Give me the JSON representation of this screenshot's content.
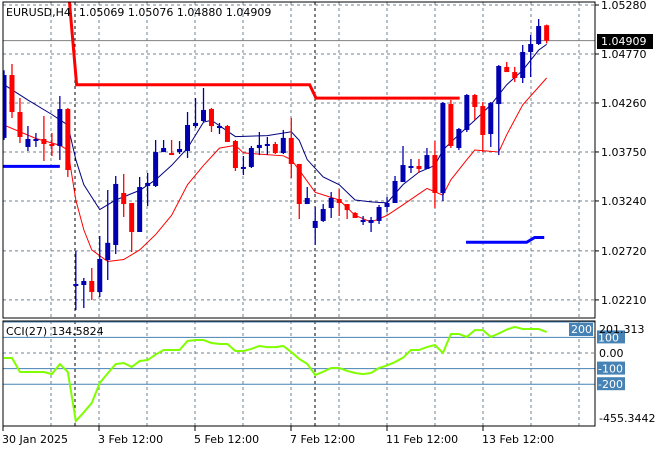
{
  "header": {
    "symbol": "EURUSD,H4",
    "ohlc": "1.05069 1.05076 1.04880 1.04909"
  },
  "colors": {
    "bull": "#0000b0",
    "bear": "#ff0000",
    "ma_fast": "#000080",
    "ma_slow": "#ff0000",
    "cci": "#80ff00",
    "level_line": "#4682b4",
    "grid": "#708090"
  },
  "chart_data": [
    {
      "type": "candlestick",
      "title": "EURUSD,H4",
      "ylim": [
        1.0205,
        1.0533
      ],
      "y_ticks": [
        "1.05280",
        "1.04770",
        "1.04260",
        "1.03750",
        "1.03240",
        "1.02720",
        "1.02210"
      ],
      "current_price_label": "1.04909",
      "x_tick_labels": [
        "30 Jan 2025",
        "3 Feb 12:00",
        "5 Feb 12:00",
        "7 Feb 12:00",
        "11 Feb 12:00",
        "13 Feb 12:00"
      ],
      "candles_ohlc": [
        [
          1.03896,
          1.046,
          1.03875,
          1.04551
        ],
        [
          1.04551,
          1.04666,
          1.04104,
          1.04166
        ],
        [
          1.04166,
          1.04312,
          1.03843,
          1.03906
        ],
        [
          1.03802,
          1.0402,
          1.0376,
          1.03885
        ],
        [
          1.03875,
          1.03947,
          1.03802,
          1.03885
        ],
        [
          1.03885,
          1.04124,
          1.03656,
          1.03833
        ],
        [
          1.03833,
          1.03947,
          1.03708,
          1.03812
        ],
        [
          1.03812,
          1.04333,
          1.03666,
          1.04197
        ],
        [
          1.04197,
          1.04208,
          1.0349,
          1.03562
        ],
        [
          1.02365,
          1.02719,
          1.02105,
          1.02376
        ],
        [
          1.02365,
          1.02438,
          1.02125,
          1.02407
        ],
        [
          1.02407,
          1.02542,
          1.02209,
          1.02292
        ],
        [
          1.02292,
          1.02875,
          1.0224,
          1.02636
        ],
        [
          1.02625,
          1.03354,
          1.02417,
          1.02804
        ],
        [
          1.02782,
          1.035,
          1.02688,
          1.03417
        ],
        [
          1.03323,
          1.03521,
          1.03073,
          1.03208
        ],
        [
          1.03219,
          1.03219,
          1.02709,
          1.02917
        ],
        [
          1.02917,
          1.0349,
          1.02917,
          1.03385
        ],
        [
          1.03396,
          1.03531,
          1.03188,
          1.03427
        ],
        [
          1.03396,
          1.03875,
          1.03385,
          1.03749
        ],
        [
          1.03749,
          1.03875,
          1.03749,
          1.03791
        ],
        [
          1.03739,
          1.03875,
          1.03718,
          1.03729
        ],
        [
          1.03749,
          1.03864,
          1.03729,
          1.03781
        ],
        [
          1.0376,
          1.04166,
          1.03687,
          1.04031
        ],
        [
          1.0402,
          1.04312,
          1.04,
          1.04052
        ],
        [
          1.04072,
          1.04416,
          1.04062,
          1.04187
        ],
        [
          1.04197,
          1.04208,
          1.03958,
          1.0402
        ],
        [
          1.04,
          1.04052,
          1.03937,
          1.0402
        ],
        [
          1.0402,
          1.04031,
          1.03854,
          1.03854
        ],
        [
          1.03864,
          1.03875,
          1.03552,
          1.03583
        ],
        [
          1.03583,
          1.03708,
          1.0351,
          1.03594
        ],
        [
          1.03594,
          1.03812,
          1.03583,
          1.03791
        ],
        [
          1.03791,
          1.03958,
          1.03718,
          1.03823
        ],
        [
          1.03823,
          1.03906,
          1.03718,
          1.03833
        ],
        [
          1.03833,
          1.03854,
          1.03729,
          1.03739
        ],
        [
          1.03739,
          1.03979,
          1.03729,
          1.03896
        ],
        [
          1.03896,
          1.04104,
          1.03479,
          1.03625
        ],
        [
          1.03625,
          1.03625,
          1.03052,
          1.03208
        ],
        [
          1.03208,
          1.03385,
          1.03208,
          1.03271
        ],
        [
          1.02959,
          1.03177,
          1.02782,
          1.03032
        ],
        [
          1.03032,
          1.03208,
          1.03021,
          1.03156
        ],
        [
          1.03167,
          1.03333,
          1.03063,
          1.03271
        ],
        [
          1.0326,
          1.03365,
          1.03083,
          1.03219
        ],
        [
          1.03208,
          1.03208,
          1.03052,
          1.03146
        ],
        [
          1.03115,
          1.03125,
          1.03063,
          1.03063
        ],
        [
          1.03032,
          1.03083,
          1.0299,
          1.03042
        ],
        [
          1.03011,
          1.03073,
          1.02917,
          1.03042
        ],
        [
          1.03032,
          1.03198,
          1.03,
          1.03177
        ],
        [
          1.03177,
          1.03281,
          1.03125,
          1.03219
        ],
        [
          1.03219,
          1.035,
          1.03219,
          1.03448
        ],
        [
          1.03437,
          1.03812,
          1.03437,
          1.03614
        ],
        [
          1.03583,
          1.03677,
          1.03531,
          1.03604
        ],
        [
          1.03604,
          1.03677,
          1.03531,
          1.03573
        ],
        [
          1.03573,
          1.03791,
          1.03573,
          1.03718
        ],
        [
          1.03718,
          1.03864,
          1.03167,
          1.03323
        ],
        [
          1.03323,
          1.0427,
          1.0324,
          1.0426
        ],
        [
          1.04249,
          1.04291,
          1.03791,
          1.03812
        ],
        [
          1.03791,
          1.04,
          1.0377,
          1.03989
        ],
        [
          1.03979,
          1.04353,
          1.03958,
          1.04343
        ],
        [
          1.04343,
          1.04353,
          1.04083,
          1.04218
        ],
        [
          1.04228,
          1.0427,
          1.03749,
          1.03927
        ],
        [
          1.03937,
          1.0427,
          1.03802,
          1.0426
        ],
        [
          1.04249,
          1.04655,
          1.03718,
          1.04645
        ],
        [
          1.04635,
          1.04687,
          1.04582,
          1.04582
        ],
        [
          1.04582,
          1.04635,
          1.04478,
          1.0452
        ],
        [
          1.0452,
          1.04864,
          1.04468,
          1.04791
        ],
        [
          1.04791,
          1.04968,
          1.0453,
          1.04874
        ],
        [
          1.04874,
          1.05134,
          1.04864,
          1.05061
        ],
        [
          1.05069,
          1.05076,
          1.0488,
          1.04909
        ]
      ],
      "ma_fast": [
        [
          1,
          1.0445
        ],
        [
          4,
          1.0429
        ],
        [
          7,
          1.0414
        ],
        [
          9,
          1.0403
        ],
        [
          10,
          1.0367
        ],
        [
          11,
          1.0341
        ],
        [
          13,
          1.0315
        ],
        [
          15,
          1.0325
        ],
        [
          18,
          1.0335
        ],
        [
          20,
          1.0346
        ],
        [
          22,
          1.0361
        ],
        [
          24,
          1.0379
        ],
        [
          26,
          1.0406
        ],
        [
          27,
          1.0408
        ],
        [
          30,
          1.0391
        ],
        [
          34,
          1.0392
        ],
        [
          37,
          1.0396
        ],
        [
          38,
          1.0387
        ],
        [
          39,
          1.0367
        ],
        [
          41,
          1.0349
        ],
        [
          43,
          1.0341
        ],
        [
          45,
          1.0325
        ],
        [
          47,
          1.0323
        ],
        [
          49,
          1.0322
        ],
        [
          51,
          1.0341
        ],
        [
          53,
          1.0354
        ],
        [
          55,
          1.0361
        ],
        [
          56,
          1.0377
        ],
        [
          58,
          1.0393
        ],
        [
          60,
          1.0408
        ],
        [
          62,
          1.0424
        ],
        [
          64,
          1.0445
        ],
        [
          66,
          1.046
        ],
        [
          68,
          1.0481
        ],
        [
          69,
          1.0487
        ]
      ],
      "ma_slow": [
        [
          1,
          1.0403
        ],
        [
          5,
          1.0389
        ],
        [
          8,
          1.0382
        ],
        [
          9,
          1.0377
        ],
        [
          10,
          1.0325
        ],
        [
          11,
          1.0294
        ],
        [
          12,
          1.0273
        ],
        [
          14,
          1.0261
        ],
        [
          16,
          1.0263
        ],
        [
          18,
          1.0273
        ],
        [
          20,
          1.0289
        ],
        [
          22,
          1.0309
        ],
        [
          24,
          1.0341
        ],
        [
          26,
          1.0361
        ],
        [
          28,
          1.0379
        ],
        [
          30,
          1.0382
        ],
        [
          31,
          1.0374
        ],
        [
          36,
          1.0371
        ],
        [
          37,
          1.0367
        ],
        [
          38,
          1.0356
        ],
        [
          40,
          1.0333
        ],
        [
          43,
          1.0325
        ],
        [
          45,
          1.0309
        ],
        [
          47,
          1.0302
        ],
        [
          49,
          1.0309
        ],
        [
          51,
          1.032
        ],
        [
          54,
          1.0337
        ],
        [
          56,
          1.033
        ],
        [
          57,
          1.0346
        ],
        [
          59,
          1.0367
        ],
        [
          60,
          1.0377
        ],
        [
          63,
          1.0375
        ],
        [
          64,
          1.0393
        ],
        [
          66,
          1.0424
        ],
        [
          69,
          1.0452
        ]
      ],
      "resistance_level": [
        [
          8.9,
          1.056
        ],
        [
          10.1,
          1.0445
        ],
        [
          39.3,
          1.0445
        ],
        [
          40.1,
          1.0431
        ],
        [
          58.1,
          1.0431
        ]
      ],
      "support_level": [
        [
          0.6,
          1.036
        ],
        [
          8.0,
          1.036
        ],
        [
          null,
          null
        ],
        [
          58.9,
          1.0281
        ],
        [
          66.5,
          1.0281
        ],
        [
          67.5,
          1.0286
        ],
        [
          68.7,
          1.0286
        ]
      ]
    },
    {
      "type": "line",
      "title": "CCI(27)",
      "current_value": "134.5824",
      "ylim": [
        -455.3442,
        201.313
      ],
      "axis_max_label": "201.313",
      "axis_min_label": "-455.3442",
      "levels": [
        {
          "value": 100,
          "label": "100"
        },
        {
          "value": 0,
          "label": "0.00"
        },
        {
          "value": -100,
          "label": "-100"
        },
        {
          "value": -200,
          "label": "-200"
        },
        {
          "value": 200,
          "label": "200"
        }
      ],
      "values": [
        -32,
        -32,
        -122,
        -122,
        -122,
        -122,
        -135,
        -71,
        -122,
        -436,
        -380,
        -320,
        -192,
        -130,
        -71,
        -64,
        -90,
        -51,
        -45,
        -10,
        19,
        19,
        19,
        77,
        83,
        83,
        64,
        58,
        58,
        13,
        13,
        26,
        45,
        38,
        38,
        45,
        6,
        -38,
        -70,
        -141,
        -120,
        -96,
        -96,
        -115,
        -128,
        -135,
        -128,
        -96,
        -80,
        -58,
        -30,
        19,
        19,
        38,
        51,
        0,
        122,
        122,
        103,
        147,
        147,
        103,
        125,
        150,
        167,
        154,
        154,
        154,
        134.58
      ]
    }
  ]
}
